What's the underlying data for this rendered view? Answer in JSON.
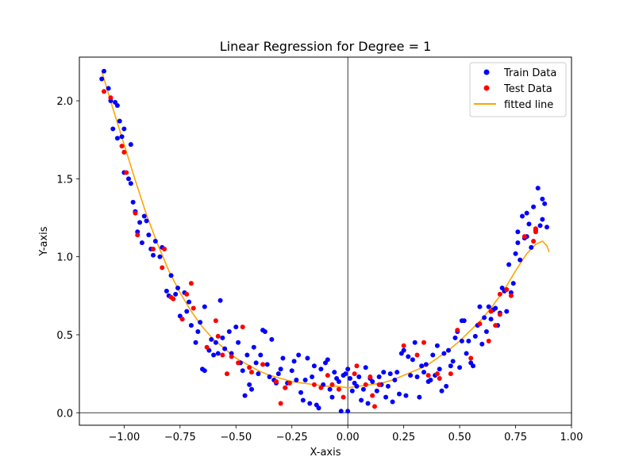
{
  "chart_data": {
    "type": "scatter",
    "title": "Linear Regression for Degree = 1",
    "xlabel": "X-axis",
    "ylabel": "Y-axis",
    "xlim": [
      -1.2,
      1.0
    ],
    "ylim": [
      -0.08,
      2.28
    ],
    "xticks": [
      -1.0,
      -0.75,
      -0.5,
      -0.25,
      0.0,
      0.25,
      0.5,
      0.75,
      1.0
    ],
    "xtick_labels": [
      "−1.00",
      "−0.75",
      "−0.50",
      "−0.25",
      "0.00",
      "0.25",
      "0.50",
      "0.75",
      "1.00"
    ],
    "yticks": [
      0.0,
      0.5,
      1.0,
      1.5,
      2.0
    ],
    "ytick_labels": [
      "0.0",
      "0.5",
      "1.0",
      "1.5",
      "2.0"
    ],
    "grid": false,
    "legend_position": "top-right",
    "reference_lines": {
      "x": 0,
      "y": 0
    },
    "series": [
      {
        "name": "Train Data",
        "kind": "scatter",
        "color": "#0000ff",
        "points": [
          [
            -1.1,
            2.14
          ],
          [
            -1.09,
            2.19
          ],
          [
            -1.07,
            2.08
          ],
          [
            -1.06,
            2.0
          ],
          [
            -1.05,
            1.82
          ],
          [
            -1.04,
            1.99
          ],
          [
            -1.03,
            1.97
          ],
          [
            -1.03,
            1.76
          ],
          [
            -1.02,
            1.87
          ],
          [
            -1.01,
            1.77
          ],
          [
            -1.0,
            1.82
          ],
          [
            -1.0,
            1.54
          ],
          [
            -0.98,
            1.5
          ],
          [
            -0.97,
            1.47
          ],
          [
            -0.96,
            1.35
          ],
          [
            -0.97,
            1.72
          ],
          [
            -0.95,
            1.29
          ],
          [
            -0.94,
            1.16
          ],
          [
            -0.93,
            1.22
          ],
          [
            -0.92,
            1.09
          ],
          [
            -0.91,
            1.26
          ],
          [
            -0.9,
            1.23
          ],
          [
            -0.89,
            1.14
          ],
          [
            -0.88,
            1.05
          ],
          [
            -0.87,
            1.01
          ],
          [
            -0.86,
            1.1
          ],
          [
            -0.84,
            1.0
          ],
          [
            -0.83,
            1.06
          ],
          [
            -0.81,
            0.78
          ],
          [
            -0.8,
            0.75
          ],
          [
            -0.79,
            0.88
          ],
          [
            -0.77,
            0.76
          ],
          [
            -0.76,
            0.8
          ],
          [
            -0.75,
            0.62
          ],
          [
            -0.74,
            0.6
          ],
          [
            -0.73,
            0.77
          ],
          [
            -0.72,
            0.65
          ],
          [
            -0.71,
            0.71
          ],
          [
            -0.7,
            0.56
          ],
          [
            -0.68,
            0.45
          ],
          [
            -0.67,
            0.52
          ],
          [
            -0.66,
            0.58
          ],
          [
            -0.65,
            0.28
          ],
          [
            -0.64,
            0.27
          ],
          [
            -0.64,
            0.68
          ],
          [
            -0.62,
            0.4
          ],
          [
            -0.61,
            0.47
          ],
          [
            -0.6,
            0.37
          ],
          [
            -0.59,
            0.45
          ],
          [
            -0.58,
            0.38
          ],
          [
            -0.57,
            0.72
          ],
          [
            -0.56,
            0.48
          ],
          [
            -0.55,
            0.41
          ],
          [
            -0.53,
            0.52
          ],
          [
            -0.52,
            0.38
          ],
          [
            -0.5,
            0.55
          ],
          [
            -0.49,
            0.45
          ],
          [
            -0.48,
            0.32
          ],
          [
            -0.47,
            0.27
          ],
          [
            -0.46,
            0.11
          ],
          [
            -0.45,
            0.37
          ],
          [
            -0.44,
            0.18
          ],
          [
            -0.43,
            0.15
          ],
          [
            -0.42,
            0.42
          ],
          [
            -0.41,
            0.32
          ],
          [
            -0.4,
            0.25
          ],
          [
            -0.39,
            0.37
          ],
          [
            -0.38,
            0.53
          ],
          [
            -0.37,
            0.52
          ],
          [
            -0.36,
            0.31
          ],
          [
            -0.35,
            0.23
          ],
          [
            -0.34,
            0.47
          ],
          [
            -0.33,
            0.21
          ],
          [
            -0.32,
            0.19
          ],
          [
            -0.31,
            0.25
          ],
          [
            -0.3,
            0.28
          ],
          [
            -0.29,
            0.35
          ],
          [
            -0.28,
            0.16
          ],
          [
            -0.27,
            0.19
          ],
          [
            -0.25,
            0.27
          ],
          [
            -0.24,
            0.33
          ],
          [
            -0.23,
            0.21
          ],
          [
            -0.22,
            0.37
          ],
          [
            -0.21,
            0.13
          ],
          [
            -0.2,
            0.08
          ],
          [
            -0.19,
            0.21
          ],
          [
            -0.18,
            0.35
          ],
          [
            -0.17,
            0.06
          ],
          [
            -0.16,
            0.23
          ],
          [
            -0.15,
            0.3
          ],
          [
            -0.14,
            0.05
          ],
          [
            -0.13,
            0.03
          ],
          [
            -0.12,
            0.28
          ],
          [
            -0.11,
            0.18
          ],
          [
            -0.1,
            0.32
          ],
          [
            -0.09,
            0.34
          ],
          [
            -0.08,
            0.15
          ],
          [
            -0.07,
            0.1
          ],
          [
            -0.06,
            0.26
          ],
          [
            -0.05,
            0.22
          ],
          [
            -0.04,
            0.2
          ],
          [
            -0.03,
            0.01
          ],
          [
            -0.02,
            0.24
          ],
          [
            -0.01,
            0.25
          ],
          [
            0.0,
            0.28
          ],
          [
            0.0,
            0.01
          ],
          [
            0.01,
            0.22
          ],
          [
            0.02,
            0.14
          ],
          [
            0.03,
            0.19
          ],
          [
            0.04,
            0.17
          ],
          [
            0.05,
            0.23
          ],
          [
            0.06,
            0.08
          ],
          [
            0.07,
            0.15
          ],
          [
            0.08,
            0.29
          ],
          [
            0.09,
            0.06
          ],
          [
            0.1,
            0.22
          ],
          [
            0.11,
            0.2
          ],
          [
            0.13,
            0.14
          ],
          [
            0.14,
            0.23
          ],
          [
            0.15,
            0.18
          ],
          [
            0.16,
            0.26
          ],
          [
            0.17,
            0.1
          ],
          [
            0.18,
            0.17
          ],
          [
            0.19,
            0.25
          ],
          [
            0.2,
            0.07
          ],
          [
            0.21,
            0.21
          ],
          [
            0.22,
            0.26
          ],
          [
            0.23,
            0.12
          ],
          [
            0.24,
            0.38
          ],
          [
            0.25,
            0.4
          ],
          [
            0.26,
            0.11
          ],
          [
            0.27,
            0.36
          ],
          [
            0.28,
            0.24
          ],
          [
            0.29,
            0.34
          ],
          [
            0.3,
            0.45
          ],
          [
            0.31,
            0.23
          ],
          [
            0.32,
            0.1
          ],
          [
            0.33,
            0.3
          ],
          [
            0.34,
            0.26
          ],
          [
            0.35,
            0.31
          ],
          [
            0.36,
            0.2
          ],
          [
            0.37,
            0.21
          ],
          [
            0.38,
            0.37
          ],
          [
            0.39,
            0.24
          ],
          [
            0.4,
            0.43
          ],
          [
            0.41,
            0.28
          ],
          [
            0.42,
            0.14
          ],
          [
            0.43,
            0.38
          ],
          [
            0.44,
            0.17
          ],
          [
            0.45,
            0.4
          ],
          [
            0.46,
            0.3
          ],
          [
            0.47,
            0.33
          ],
          [
            0.48,
            0.48
          ],
          [
            0.49,
            0.52
          ],
          [
            0.5,
            0.29
          ],
          [
            0.51,
            0.46
          ],
          [
            0.51,
            0.59
          ],
          [
            0.52,
            0.59
          ],
          [
            0.53,
            0.38
          ],
          [
            0.54,
            0.46
          ],
          [
            0.55,
            0.32
          ],
          [
            0.56,
            0.3
          ],
          [
            0.57,
            0.49
          ],
          [
            0.58,
            0.56
          ],
          [
            0.59,
            0.68
          ],
          [
            0.6,
            0.44
          ],
          [
            0.61,
            0.61
          ],
          [
            0.62,
            0.52
          ],
          [
            0.63,
            0.68
          ],
          [
            0.64,
            0.6
          ],
          [
            0.65,
            0.66
          ],
          [
            0.66,
            0.67
          ],
          [
            0.67,
            0.56
          ],
          [
            0.68,
            0.64
          ],
          [
            0.69,
            0.8
          ],
          [
            0.7,
            0.78
          ],
          [
            0.71,
            0.65
          ],
          [
            0.72,
            0.95
          ],
          [
            0.73,
            0.77
          ],
          [
            0.74,
            0.83
          ],
          [
            0.75,
            1.02
          ],
          [
            0.76,
            1.16
          ],
          [
            0.76,
            1.09
          ],
          [
            0.77,
            0.98
          ],
          [
            0.78,
            1.26
          ],
          [
            0.79,
            1.12
          ],
          [
            0.8,
            1.28
          ],
          [
            0.8,
            1.13
          ],
          [
            0.81,
            1.21
          ],
          [
            0.82,
            1.06
          ],
          [
            0.83,
            1.32
          ],
          [
            0.84,
            1.17
          ],
          [
            0.85,
            1.44
          ],
          [
            0.86,
            1.2
          ],
          [
            0.87,
            1.24
          ],
          [
            0.87,
            1.37
          ],
          [
            0.88,
            1.34
          ],
          [
            0.89,
            1.19
          ]
        ]
      },
      {
        "name": "Test Data",
        "kind": "scatter",
        "color": "#ff0000",
        "points": [
          [
            -1.09,
            2.06
          ],
          [
            -1.06,
            2.02
          ],
          [
            -1.01,
            1.71
          ],
          [
            -1.0,
            1.67
          ],
          [
            -0.99,
            1.54
          ],
          [
            -0.95,
            1.28
          ],
          [
            -0.94,
            1.14
          ],
          [
            -0.87,
            1.05
          ],
          [
            -0.83,
            0.93
          ],
          [
            -0.82,
            1.05
          ],
          [
            -0.79,
            0.74
          ],
          [
            -0.78,
            0.73
          ],
          [
            -0.74,
            0.6
          ],
          [
            -0.72,
            0.76
          ],
          [
            -0.7,
            0.83
          ],
          [
            -0.69,
            0.67
          ],
          [
            -0.63,
            0.42
          ],
          [
            -0.59,
            0.59
          ],
          [
            -0.58,
            0.49
          ],
          [
            -0.56,
            0.37
          ],
          [
            -0.54,
            0.25
          ],
          [
            -0.52,
            0.36
          ],
          [
            -0.49,
            0.32
          ],
          [
            -0.47,
            0.55
          ],
          [
            -0.44,
            0.29
          ],
          [
            -0.43,
            0.26
          ],
          [
            -0.38,
            0.31
          ],
          [
            -0.32,
            0.2
          ],
          [
            -0.3,
            0.06
          ],
          [
            -0.28,
            0.16
          ],
          [
            -0.26,
            0.19
          ],
          [
            -0.15,
            0.18
          ],
          [
            -0.12,
            0.16
          ],
          [
            -0.09,
            0.24
          ],
          [
            -0.07,
            0.18
          ],
          [
            -0.04,
            0.15
          ],
          [
            -0.02,
            0.1
          ],
          [
            0.03,
            0.25
          ],
          [
            0.04,
            0.3
          ],
          [
            0.08,
            0.18
          ],
          [
            0.1,
            0.23
          ],
          [
            0.11,
            0.11
          ],
          [
            0.12,
            0.04
          ],
          [
            0.14,
            0.18
          ],
          [
            0.25,
            0.43
          ],
          [
            0.31,
            0.37
          ],
          [
            0.34,
            0.45
          ],
          [
            0.36,
            0.24
          ],
          [
            0.4,
            0.25
          ],
          [
            0.41,
            0.22
          ],
          [
            0.46,
            0.25
          ],
          [
            0.49,
            0.53
          ],
          [
            0.55,
            0.35
          ],
          [
            0.59,
            0.57
          ],
          [
            0.63,
            0.46
          ],
          [
            0.64,
            0.65
          ],
          [
            0.66,
            0.56
          ],
          [
            0.68,
            0.63
          ],
          [
            0.68,
            0.76
          ],
          [
            0.71,
            0.79
          ],
          [
            0.73,
            0.75
          ],
          [
            0.79,
            1.13
          ],
          [
            0.83,
            1.1
          ],
          [
            0.84,
            1.16
          ],
          [
            0.84,
            1.18
          ]
        ]
      },
      {
        "name": "fitted line",
        "kind": "line",
        "color": "#ffa500",
        "points": [
          [
            -1.1,
            2.19
          ],
          [
            -1.05,
            1.95
          ],
          [
            -1.0,
            1.72
          ],
          [
            -0.95,
            1.49
          ],
          [
            -0.9,
            1.27
          ],
          [
            -0.85,
            1.08
          ],
          [
            -0.8,
            0.91
          ],
          [
            -0.75,
            0.77
          ],
          [
            -0.7,
            0.65
          ],
          [
            -0.65,
            0.55
          ],
          [
            -0.6,
            0.47
          ],
          [
            -0.55,
            0.41
          ],
          [
            -0.5,
            0.35
          ],
          [
            -0.45,
            0.31
          ],
          [
            -0.4,
            0.27
          ],
          [
            -0.35,
            0.24
          ],
          [
            -0.3,
            0.22
          ],
          [
            -0.25,
            0.2
          ],
          [
            -0.2,
            0.19
          ],
          [
            -0.15,
            0.18
          ],
          [
            -0.1,
            0.17
          ],
          [
            -0.05,
            0.17
          ],
          [
            0.0,
            0.16
          ],
          [
            0.05,
            0.17
          ],
          [
            0.1,
            0.18
          ],
          [
            0.15,
            0.19
          ],
          [
            0.2,
            0.21
          ],
          [
            0.25,
            0.24
          ],
          [
            0.3,
            0.27
          ],
          [
            0.35,
            0.3
          ],
          [
            0.4,
            0.35
          ],
          [
            0.45,
            0.4
          ],
          [
            0.5,
            0.46
          ],
          [
            0.55,
            0.53
          ],
          [
            0.6,
            0.6
          ],
          [
            0.65,
            0.69
          ],
          [
            0.7,
            0.79
          ],
          [
            0.75,
            0.91
          ],
          [
            0.8,
            1.02
          ],
          [
            0.84,
            1.08
          ],
          [
            0.87,
            1.1
          ],
          [
            0.89,
            1.07
          ],
          [
            0.9,
            1.03
          ]
        ]
      }
    ]
  }
}
